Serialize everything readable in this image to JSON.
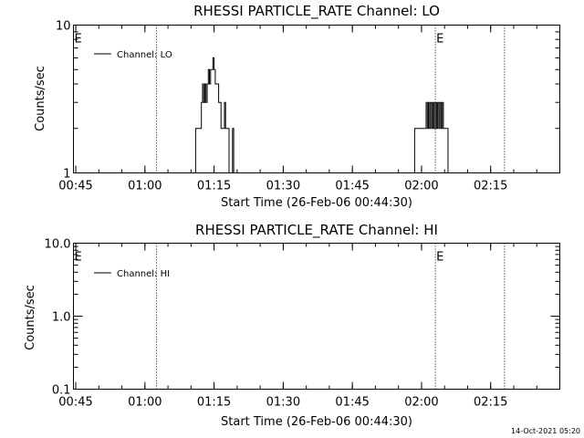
{
  "footer_timestamp": "14-Oct-2021 05:20",
  "colors": {
    "background": "#ffffff",
    "foreground": "#000000"
  },
  "chart_data": [
    {
      "type": "line",
      "title": "RHESSI PARTICLE_RATE Channel: LO",
      "xlabel": "Start Time (26-Feb-06 00:44:30)",
      "ylabel": "Counts/sec",
      "xlim": [
        "00:44:30",
        "02:30:00"
      ],
      "xticks": [
        "00:45",
        "01:00",
        "01:15",
        "01:30",
        "01:45",
        "02:00",
        "02:15"
      ],
      "ylim": [
        1,
        10
      ],
      "yscale": "log",
      "yticks": [
        "1",
        "10"
      ],
      "legend": {
        "label": "Channel: LO",
        "placement": "top-left"
      },
      "event_lines": [
        "01:02:30",
        "02:03:00",
        "02:18:00"
      ],
      "event_labels": [
        {
          "text": "E",
          "at": "00:44:30"
        },
        {
          "text": "E",
          "at": "02:03:00"
        }
      ],
      "series": [
        {
          "x": [
            "00:44:30",
            "01:10:45",
            "01:11:00",
            "01:11:45",
            "01:12:15",
            "01:12:30",
            "01:12:45",
            "01:13:00",
            "01:13:15",
            "01:13:30",
            "01:13:45",
            "01:14:00",
            "01:14:15",
            "01:14:30",
            "01:14:45",
            "01:15:00",
            "01:15:15",
            "01:15:30",
            "01:16:00",
            "01:16:15",
            "01:16:30",
            "01:17:00",
            "01:17:15",
            "01:17:30",
            "01:18:00",
            "01:18:15",
            "01:18:45",
            "01:19:00",
            "01:19:15",
            "01:19:30",
            "01:20:00",
            "01:58:15",
            "01:58:30",
            "02:00:45",
            "02:01:00",
            "02:01:15",
            "02:01:30",
            "02:01:45",
            "02:02:00",
            "02:02:15",
            "02:02:30",
            "02:02:45",
            "02:03:00",
            "02:03:15",
            "02:03:30",
            "02:03:45",
            "02:04:00",
            "02:04:15",
            "02:04:30",
            "02:04:45",
            "02:05:00",
            "02:05:15",
            "02:05:30",
            "02:05:45",
            "02:06:00",
            "02:06:15",
            "02:06:30",
            "02:30:00"
          ],
          "y": [
            1,
            1,
            2,
            2,
            3,
            4,
            3,
            4,
            3,
            4,
            5,
            4,
            5,
            5,
            6,
            5,
            4,
            4,
            3,
            3,
            2,
            2,
            3,
            2,
            2,
            1,
            1,
            2,
            1,
            1,
            1,
            1,
            2,
            2,
            3,
            2,
            3,
            2,
            3,
            2,
            3,
            2,
            3,
            2,
            3,
            2,
            3,
            2,
            3,
            2,
            2,
            2,
            2,
            1,
            1,
            1,
            1,
            1
          ]
        }
      ]
    },
    {
      "type": "line",
      "title": "RHESSI PARTICLE_RATE Channel: HI",
      "xlabel": "Start Time (26-Feb-06 00:44:30)",
      "ylabel": "Counts/sec",
      "xlim": [
        "00:44:30",
        "02:30:00"
      ],
      "xticks": [
        "00:45",
        "01:00",
        "01:15",
        "01:30",
        "01:45",
        "02:00",
        "02:15"
      ],
      "ylim": [
        0.1,
        10
      ],
      "yscale": "log",
      "yticks": [
        "0.1",
        "1.0",
        "10.0"
      ],
      "legend": {
        "label": "Channel: HI",
        "placement": "top-left"
      },
      "event_lines": [
        "01:02:30",
        "02:03:00",
        "02:18:00"
      ],
      "event_labels": [
        {
          "text": "E",
          "at": "00:44:30"
        },
        {
          "text": "E",
          "at": "02:03:00"
        }
      ],
      "series": []
    }
  ]
}
